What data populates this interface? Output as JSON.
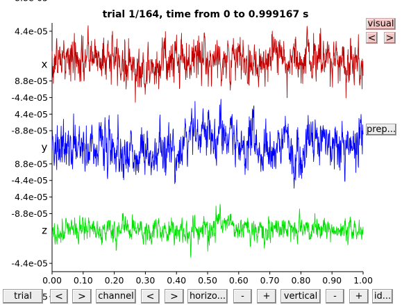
{
  "chart_data": {
    "type": "line",
    "title": "trial 1/164, time from 0 to 0.999167 s",
    "x_range": [
      0,
      1
    ],
    "x_ticks": [
      "0.00",
      "0.10",
      "0.20",
      "0.30",
      "0.40",
      "0.50",
      "0.60",
      "0.70",
      "0.80",
      "0.90",
      "1.00"
    ],
    "grid": false,
    "channels": [
      {
        "name": "x",
        "color": "#c00000",
        "y_ticks": [
          "8.8e-05",
          "4.4e-05",
          "-4.4e-05",
          "-8.8e-05"
        ],
        "y_range": [
          -8.8e-05,
          8.8e-05
        ],
        "mean": 0,
        "std": 1.6e-05,
        "extreme": 0.00011,
        "summary": [
          [
            0.0,
            5e-06
          ],
          [
            0.05,
            8e-06
          ],
          [
            0.1,
            3e-06
          ],
          [
            0.13,
            1.2e-05
          ],
          [
            0.2,
            6e-06
          ],
          [
            0.25,
            0
          ],
          [
            0.3,
            -1e-05
          ],
          [
            0.35,
            4e-06
          ],
          [
            0.4,
            8e-06
          ],
          [
            0.5,
            1e-05
          ],
          [
            0.6,
            2e-06
          ],
          [
            0.65,
            6e-06
          ],
          [
            0.7,
            1e-05
          ],
          [
            0.75,
            8e-06
          ],
          [
            0.8,
            1.2e-05
          ],
          [
            0.85,
            8e-06
          ],
          [
            0.9,
            3e-06
          ],
          [
            0.95,
            6e-06
          ],
          [
            1.0,
            0
          ]
        ]
      },
      {
        "name": "y",
        "color": "#0000ff",
        "y_ticks": [
          "8.8e-05",
          "4.4e-05",
          "-4.4e-05",
          "-8.8e-05"
        ],
        "y_range": [
          -8.8e-05,
          8.8e-05
        ],
        "mean": 0,
        "std": 1.6e-05,
        "extreme": 9e-05,
        "summary": [
          [
            0.0,
            -2e-06
          ],
          [
            0.05,
            0
          ],
          [
            0.1,
            -8e-06
          ],
          [
            0.15,
            1e-05
          ],
          [
            0.2,
            0
          ],
          [
            0.25,
            -1e-05
          ],
          [
            0.3,
            -8e-06
          ],
          [
            0.35,
            -5e-06
          ],
          [
            0.4,
            -5e-06
          ],
          [
            0.45,
            1.5e-05
          ],
          [
            0.5,
            2.5e-05
          ],
          [
            0.55,
            1.5e-05
          ],
          [
            0.6,
            0
          ],
          [
            0.65,
            5e-06
          ],
          [
            0.7,
            -1.8e-05
          ],
          [
            0.75,
            1e-05
          ],
          [
            0.8,
            -5e-06
          ],
          [
            0.85,
            1.2e-05
          ],
          [
            0.9,
            0
          ],
          [
            0.95,
            5e-06
          ],
          [
            1.0,
            1e-05
          ]
        ]
      },
      {
        "name": "z",
        "color": "#00e000",
        "y_ticks": [
          "8.8e-05",
          "4.4e-05",
          "-4.4e-05",
          "-8.8e-05"
        ],
        "y_range": [
          -8.8e-05,
          8.8e-05
        ],
        "mean": 0,
        "std": 8e-06,
        "extreme": 5e-05,
        "summary": [
          [
            0.0,
            0
          ],
          [
            0.1,
            2e-06
          ],
          [
            0.2,
            0
          ],
          [
            0.3,
            -2e-06
          ],
          [
            0.4,
            0
          ],
          [
            0.5,
            4e-06
          ],
          [
            0.55,
            6e-06
          ],
          [
            0.6,
            2e-06
          ],
          [
            0.7,
            0
          ],
          [
            0.8,
            2e-06
          ],
          [
            0.9,
            0
          ],
          [
            1.0,
            0
          ]
        ]
      }
    ]
  },
  "side_buttons": {
    "visual": "visual",
    "prev": "<",
    "next": ">",
    "prep": "prep..."
  },
  "bottom_buttons": {
    "trial": "trial",
    "trial_prev": "<",
    "trial_next": ">",
    "channel": "channel",
    "channel_prev": "<",
    "channel_next": ">",
    "horizontal": "horizo...",
    "horizontal_minus": "-",
    "horizontal_plus": "+",
    "vertical": "vertical",
    "vertical_minus": "-",
    "vertical_plus": "+",
    "identify": "id..."
  }
}
